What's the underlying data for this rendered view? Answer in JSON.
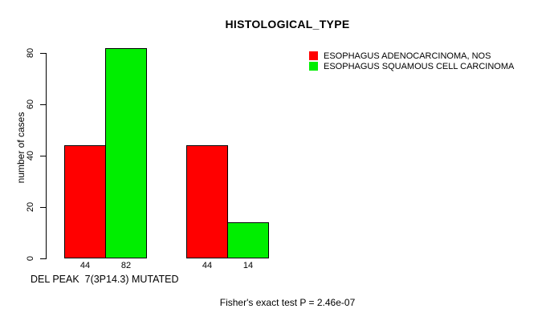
{
  "chart_data": {
    "type": "bar",
    "title": "HISTOLOGICAL_TYPE",
    "ylabel": "number of cases",
    "xlabel": "DEL PEAK  7(3P14.3) MUTATED",
    "annotation": "Fisher's exact test P = 2.46e-07",
    "ylim": [
      0,
      82
    ],
    "yticks": [
      0,
      20,
      40,
      60,
      80
    ],
    "grid": false,
    "legend_position": "top-right",
    "categories": [
      "",
      ""
    ],
    "series": [
      {
        "name": "ESOPHAGUS ADENOCARCINOMA, NOS",
        "color": "#ff0000",
        "values": [
          44,
          44
        ]
      },
      {
        "name": "ESOPHAGUS SQUAMOUS CELL CARCINOMA",
        "color": "#00ee00",
        "values": [
          82,
          14
        ]
      }
    ],
    "bar_value_labels": [
      [
        "44",
        "44"
      ],
      [
        "82",
        "14"
      ]
    ],
    "show_bar_values": true,
    "text_color": "#000000",
    "background_color": "#ffffff"
  }
}
